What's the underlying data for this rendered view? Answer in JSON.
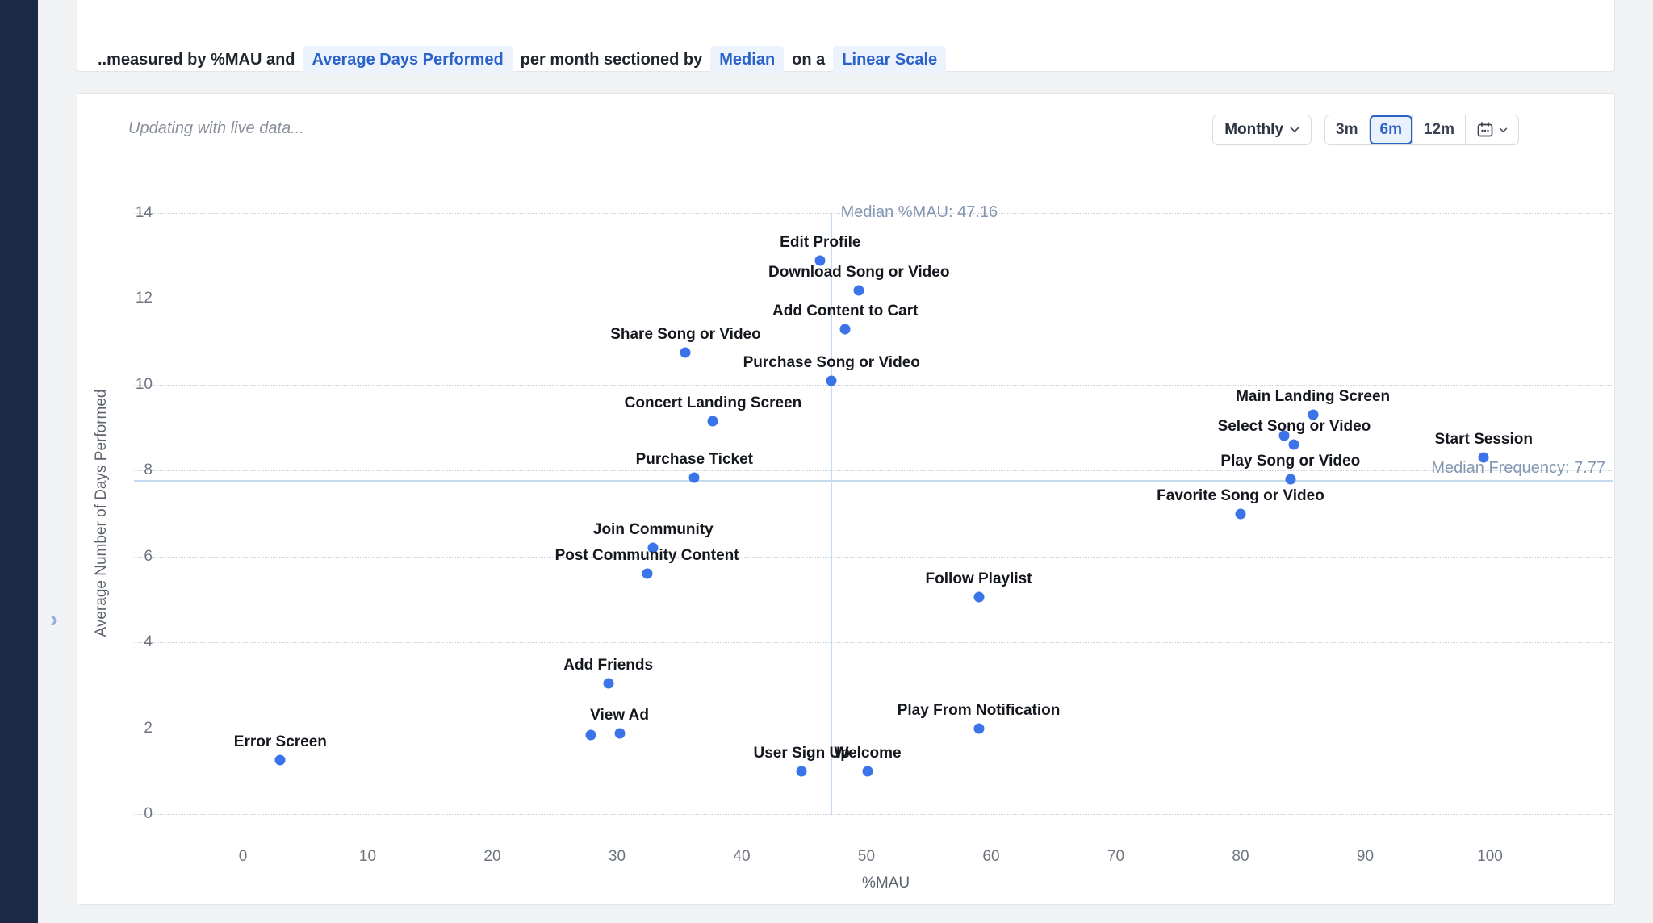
{
  "sidebar": {
    "chevron": "›"
  },
  "header": {
    "prefix": "..measured by %MAU and",
    "metric": "Average Days Performed",
    "between": "per month sectioned by",
    "section": "Median",
    "connector": "on a",
    "scale": "Linear Scale"
  },
  "toolbar": {
    "status": "Updating with live data...",
    "granularity": "Monthly",
    "ranges": [
      "3m",
      "6m",
      "12m"
    ],
    "selected_range": "6m"
  },
  "colors": {
    "accent_blue": "#2a62c7",
    "point_blue": "#3b74e8",
    "median_line": "#c4daf1",
    "sidebar_navy": "#1d2a45"
  },
  "chart_data": {
    "type": "scatter",
    "title": "",
    "xlabel": "%MAU",
    "ylabel": "Average Number of Days Performed",
    "x_ticks": [
      0,
      10,
      20,
      30,
      40,
      50,
      60,
      70,
      80,
      90,
      100
    ],
    "y_ticks": [
      0,
      2,
      4,
      6,
      8,
      10,
      12,
      14
    ],
    "xlim": [
      -8.7,
      109.9
    ],
    "ylim": [
      0,
      14
    ],
    "grid": "horizontal-dotted",
    "legend": "none",
    "median_x": {
      "value": 47.16,
      "label": "Median %MAU: 47.16"
    },
    "median_y": {
      "value": 7.77,
      "label": "Median Frequency: 7.77"
    },
    "point_color": "#3b74e8",
    "points": [
      {
        "name": "Edit Profile",
        "x": 46.3,
        "y": 12.9
      },
      {
        "name": "Download Song or Video",
        "x": 49.4,
        "y": 12.2
      },
      {
        "name": "Add Content to Cart",
        "x": 48.3,
        "y": 11.3
      },
      {
        "name": "Share Song or Video",
        "x": 35.5,
        "y": 10.75
      },
      {
        "name": "Purchase Song or Video",
        "x": 47.2,
        "y": 10.1
      },
      {
        "name": "Concert Landing Screen",
        "x": 37.7,
        "y": 9.15
      },
      {
        "name": "Main Landing Screen",
        "x": 85.8,
        "y": 9.3
      },
      {
        "name": "Select Song or Video",
        "x": 84.3,
        "y": 8.6
      },
      {
        "name": "Start Session",
        "x": 99.5,
        "y": 8.3
      },
      {
        "name": "Purchase Ticket",
        "x": 36.2,
        "y": 7.83
      },
      {
        "name": "Play Song or Video",
        "x": 84.0,
        "y": 7.8
      },
      {
        "name": "Favorite Song or Video",
        "x": 80.0,
        "y": 7.0
      },
      {
        "name": "Join Community",
        "x": 32.9,
        "y": 6.2
      },
      {
        "name": "Post Community Content",
        "x": 32.4,
        "y": 5.6
      },
      {
        "name": "Follow Playlist",
        "x": 59.0,
        "y": 5.05
      },
      {
        "name": "Add Friends",
        "x": 29.3,
        "y": 3.05
      },
      {
        "name": "Play From Notification",
        "x": 59.0,
        "y": 2.0
      },
      {
        "name": "View Ad",
        "x": 30.2,
        "y": 1.87
      },
      {
        "name": "Error Screen",
        "x": 3.0,
        "y": 1.25
      },
      {
        "name": "User Sign Up",
        "x": 44.8,
        "y": 1.0
      },
      {
        "name": "Welcome",
        "x": 50.1,
        "y": 1.0
      }
    ],
    "unlabeled_points": [
      {
        "x": 83.5,
        "y": 8.82
      },
      {
        "x": 27.9,
        "y": 1.84
      }
    ]
  }
}
